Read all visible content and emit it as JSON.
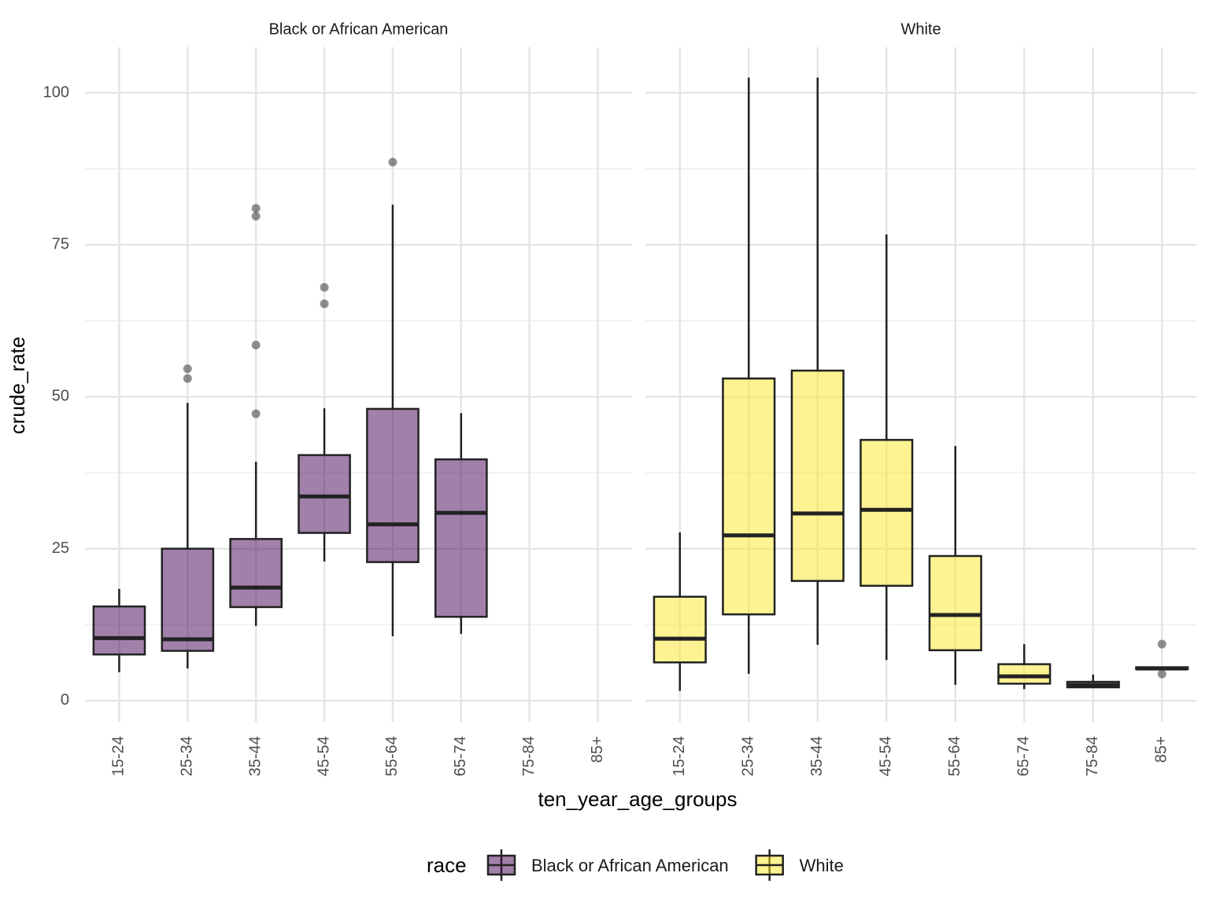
{
  "chart_data": {
    "type": "boxplot",
    "x_label": "ten_year_age_groups",
    "y_label": "crude_rate",
    "legend_title": "race",
    "categories": [
      "15-24",
      "25-34",
      "35-44",
      "45-54",
      "55-64",
      "65-74",
      "75-84",
      "85+"
    ],
    "ylim": [
      -3.5,
      107.5
    ],
    "yticks": [
      0,
      25,
      50,
      75,
      100
    ],
    "minor_yticks": [
      12.5,
      37.5,
      62.5,
      87.5
    ],
    "grid": true,
    "panels": [
      {
        "title": "Black or African American",
        "name": "Black or African American",
        "color": "#440154",
        "min": [
          4.7,
          5.3,
          12.3,
          22.9,
          10.6,
          11.0,
          null,
          null
        ],
        "q1": [
          7.6,
          8.2,
          15.4,
          27.6,
          22.8,
          13.8,
          null,
          null
        ],
        "median": [
          10.3,
          10.1,
          18.6,
          33.6,
          29.0,
          30.9,
          null,
          null
        ],
        "q3": [
          15.5,
          25.0,
          26.6,
          40.4,
          48.0,
          39.7,
          null,
          null
        ],
        "max": [
          18.4,
          49.0,
          39.3,
          48.1,
          81.6,
          47.3,
          null,
          null
        ],
        "outliers": [
          [],
          [
            54.6,
            53.0
          ],
          [
            81.0,
            79.7,
            58.5,
            47.2
          ],
          [
            68.0,
            65.3
          ],
          [
            88.6
          ],
          [],
          [],
          []
        ]
      },
      {
        "title": "White",
        "name": "White",
        "color": "#FDE725",
        "min": [
          1.6,
          4.4,
          9.2,
          6.7,
          2.6,
          1.9,
          2.2,
          5.2
        ],
        "q1": [
          6.3,
          14.2,
          19.7,
          18.9,
          8.3,
          2.8,
          2.2,
          5.2
        ],
        "median": [
          10.2,
          27.2,
          30.8,
          31.4,
          14.1,
          4.0,
          2.6,
          5.3
        ],
        "q3": [
          17.1,
          53.0,
          54.3,
          42.9,
          23.8,
          6.0,
          3.1,
          5.5
        ],
        "max": [
          27.7,
          102.5,
          102.5,
          76.7,
          41.9,
          9.3,
          4.3,
          5.5
        ],
        "outliers": [
          [],
          [],
          [],
          [],
          [],
          [],
          [],
          [
            9.3,
            4.4
          ]
        ]
      }
    ]
  }
}
